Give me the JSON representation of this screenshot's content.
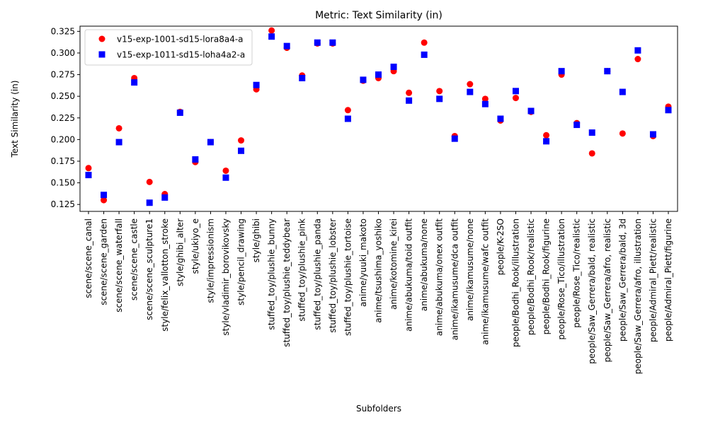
{
  "chart_data": {
    "type": "scatter",
    "title": "Metric: Text Similarity (in)",
    "xlabel": "Subfolders",
    "ylabel": "Text Similarity (in)",
    "ylim": [
      0.117,
      0.331
    ],
    "yticks": [
      0.125,
      0.15,
      0.175,
      0.2,
      0.225,
      0.25,
      0.275,
      0.3,
      0.325
    ],
    "ytick_labels": [
      "0.125",
      "0.150",
      "0.175",
      "0.200",
      "0.225",
      "0.250",
      "0.275",
      "0.300",
      "0.325"
    ],
    "grid": false,
    "legend_position": "top-left",
    "categories": [
      "scene/scene_canal",
      "scene/scene_garden",
      "scene/scene_waterfall",
      "scene/scene_castle",
      "scene/scene_sculpture1",
      "style/felix_vallotton_stroke",
      "style/ghibi_alter",
      "style/ukiyo_e",
      "style/impressionism",
      "style/vladimir_borovikovsky",
      "style/pencil_drawing",
      "style/ghibi",
      "stuffed_toy/plushie_bunny",
      "stuffed_toy/plushie_teddybear",
      "stuffed_toy/plushie_pink",
      "stuffed_toy/plushie_panda",
      "stuffed_toy/plushie_lobster",
      "stuffed_toy/plushie_tortoise",
      "anime/yuuki_makoto",
      "anime/tsushima_yoshiko",
      "anime/kotomine_kirei",
      "anime/abukuma/toid outfit",
      "anime/abukuma/none",
      "anime/abukuma/onex outfit",
      "anime/ikamusume/dca outfit",
      "anime/ikamusume/none",
      "anime/ikamusume/wafc outfit",
      "people/K-2SO",
      "people/Bodhi_Rook/illustration",
      "people/Bodhi_Rook/realistic",
      "people/Bodhi_Rook/figurine",
      "people/Rose_Tico/illustration",
      "people/Rose_Tico/realistic",
      "people/Saw_Gerrera/bald, realistic",
      "people/Saw_Gerrera/afro, realistic",
      "people/Saw_Gerrera/bald, 3d",
      "people/Saw_Gerrera/afro, illustration",
      "people/Admiral_Piett/realistic",
      "people/Admiral_Piett/figurine"
    ],
    "series": [
      {
        "name": "v15-exp-1001-sd15-lora8a4-a",
        "color": "#ff0000",
        "marker": "circle",
        "values": [
          0.167,
          0.13,
          0.213,
          0.271,
          0.151,
          0.137,
          0.232,
          0.174,
          0.197,
          0.164,
          0.199,
          0.258,
          0.326,
          0.306,
          0.274,
          0.311,
          0.311,
          0.234,
          0.268,
          0.271,
          0.279,
          0.254,
          0.312,
          0.256,
          0.204,
          0.264,
          0.247,
          0.222,
          0.248,
          0.232,
          0.205,
          0.275,
          0.219,
          0.184,
          0.279,
          0.207,
          0.293,
          0.204,
          0.238
        ]
      },
      {
        "name": "v15-exp-1011-sd15-loha4a2-a",
        "color": "#0000ff",
        "marker": "square",
        "values": [
          0.159,
          0.136,
          0.197,
          0.266,
          0.127,
          0.133,
          0.231,
          0.177,
          0.197,
          0.156,
          0.187,
          0.263,
          0.319,
          0.308,
          0.271,
          0.312,
          0.312,
          0.224,
          0.269,
          0.275,
          0.284,
          0.245,
          0.298,
          0.247,
          0.201,
          0.255,
          0.241,
          0.224,
          0.256,
          0.233,
          0.198,
          0.279,
          0.217,
          0.208,
          0.279,
          0.255,
          0.303,
          0.206,
          0.234
        ]
      }
    ]
  }
}
